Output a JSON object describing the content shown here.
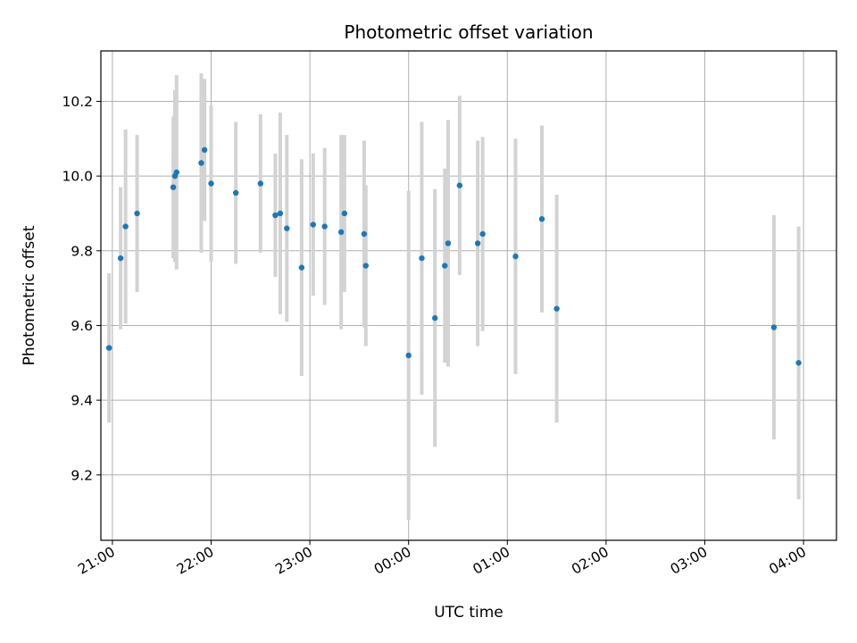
{
  "chart_data": {
    "type": "scatter",
    "title": "Photometric offset variation",
    "xlabel": "UTC time",
    "ylabel": "Photometric offset",
    "xlim": [
      "20:53",
      "04:20"
    ],
    "ylim": [
      9.025,
      10.335
    ],
    "grid": true,
    "x_ticks": [
      "21:00",
      "22:00",
      "23:00",
      "00:00",
      "01:00",
      "02:00",
      "03:00",
      "04:00"
    ],
    "y_ticks": [
      9.2,
      9.4,
      9.6,
      9.8,
      10.0,
      10.2
    ],
    "y_tick_labels": [
      "9.2",
      "9.4",
      "9.6",
      "9.8",
      "10.0",
      "10.2"
    ],
    "marker_color": "#1f77b4",
    "errorbar_color": "#d3d3d3",
    "series": [
      {
        "x": [
          "20:58",
          "21:05",
          "21:08",
          "21:15",
          "21:37",
          "21:38",
          "21:39",
          "21:54",
          "21:56",
          "22:00",
          "22:15",
          "22:30",
          "22:39",
          "22:42",
          "22:46",
          "22:55",
          "23:02",
          "23:09",
          "23:19",
          "23:21",
          "23:33",
          "23:34",
          "00:00",
          "00:08",
          "00:16",
          "00:22",
          "00:24",
          "00:31",
          "00:42",
          "00:45",
          "01:05",
          "01:21",
          "01:30",
          "03:42",
          "03:57"
        ],
        "y": [
          9.54,
          9.78,
          9.865,
          9.9,
          9.97,
          10.0,
          10.01,
          10.035,
          10.07,
          9.98,
          9.955,
          9.98,
          9.895,
          9.9,
          9.86,
          9.755,
          9.87,
          9.865,
          9.85,
          9.9,
          9.845,
          9.76,
          9.52,
          9.78,
          9.62,
          9.76,
          9.82,
          9.975,
          9.82,
          9.845,
          9.785,
          9.885,
          9.645,
          9.595,
          9.5
        ],
        "yerr": [
          0.2,
          0.19,
          0.26,
          0.21,
          0.19,
          0.23,
          0.26,
          0.24,
          0.19,
          0.21,
          0.19,
          0.185,
          0.165,
          0.27,
          0.25,
          0.29,
          0.19,
          0.21,
          0.26,
          0.21,
          0.25,
          0.215,
          0.44,
          0.365,
          0.345,
          0.26,
          0.33,
          0.24,
          0.275,
          0.26,
          0.315,
          0.25,
          0.305,
          0.3,
          0.365
        ]
      }
    ]
  }
}
